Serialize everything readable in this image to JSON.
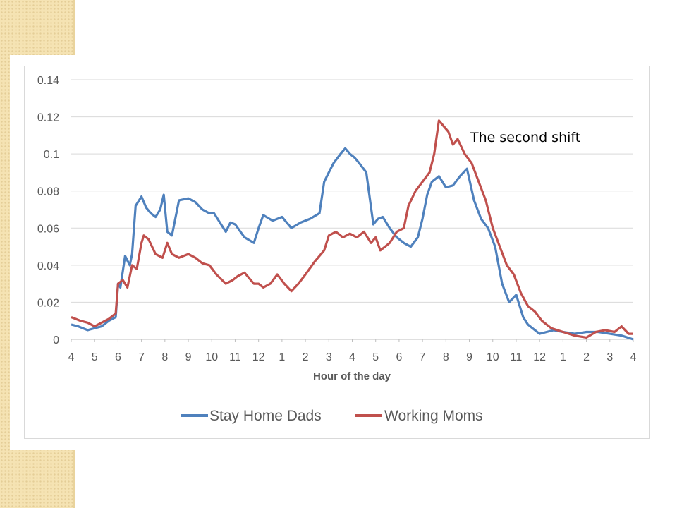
{
  "annotation": "The second shift",
  "colors": {
    "dads": "#4f81bd",
    "moms": "#c0504d",
    "axis_text": "#595959",
    "grid": "#d9d9d9"
  },
  "chart_data": {
    "type": "line",
    "title": "",
    "xlabel": "Hour of the day",
    "ylabel": "",
    "ylim": [
      0,
      0.14
    ],
    "yticks": [
      "0",
      "0.02",
      "0.04",
      "0.06",
      "0.08",
      "0.1",
      "0.12",
      "0.14"
    ],
    "xticks": [
      "4",
      "5",
      "6",
      "7",
      "8",
      "9",
      "10",
      "11",
      "12",
      "1",
      "2",
      "3",
      "4",
      "5",
      "6",
      "7",
      "8",
      "9",
      "10",
      "11",
      "12",
      "1",
      "2",
      "3",
      "4"
    ],
    "grid": "horizontal",
    "legend_position": "bottom",
    "x_unit": "hours after 4 AM",
    "series": [
      {
        "name": "Stay Home Dads",
        "color": "#4f81bd",
        "x": [
          0,
          0.3,
          0.7,
          1.0,
          1.3,
          1.6,
          1.9,
          2.0,
          2.1,
          2.3,
          2.5,
          2.6,
          2.75,
          2.9,
          3.0,
          3.2,
          3.4,
          3.6,
          3.8,
          3.95,
          4.1,
          4.3,
          4.6,
          5.0,
          5.3,
          5.6,
          5.9,
          6.1,
          6.3,
          6.6,
          6.8,
          7.0,
          7.4,
          7.8,
          8.0,
          8.2,
          8.6,
          9.0,
          9.4,
          9.8,
          10.2,
          10.6,
          10.8,
          11.0,
          11.2,
          11.5,
          11.7,
          11.9,
          12.1,
          12.3,
          12.6,
          12.9,
          13.1,
          13.3,
          13.6,
          13.9,
          14.2,
          14.5,
          14.8,
          15.0,
          15.2,
          15.4,
          15.7,
          16.0,
          16.3,
          16.6,
          16.9,
          17.2,
          17.5,
          17.8,
          18.1,
          18.4,
          18.7,
          19.0,
          19.3,
          19.5,
          19.8,
          20.0,
          20.3,
          20.6,
          21.0,
          21.5,
          22.0,
          22.5,
          23.0,
          23.5,
          24.0
        ],
        "values": [
          0.008,
          0.007,
          0.005,
          0.006,
          0.007,
          0.01,
          0.012,
          0.03,
          0.028,
          0.045,
          0.04,
          0.046,
          0.072,
          0.075,
          0.077,
          0.071,
          0.068,
          0.066,
          0.07,
          0.078,
          0.058,
          0.056,
          0.075,
          0.076,
          0.074,
          0.07,
          0.068,
          0.068,
          0.064,
          0.058,
          0.063,
          0.062,
          0.055,
          0.052,
          0.06,
          0.067,
          0.064,
          0.066,
          0.06,
          0.063,
          0.065,
          0.068,
          0.085,
          0.09,
          0.095,
          0.1,
          0.103,
          0.1,
          0.098,
          0.095,
          0.09,
          0.062,
          0.065,
          0.066,
          0.06,
          0.055,
          0.052,
          0.05,
          0.055,
          0.065,
          0.078,
          0.085,
          0.088,
          0.082,
          0.083,
          0.088,
          0.092,
          0.075,
          0.065,
          0.06,
          0.05,
          0.03,
          0.02,
          0.024,
          0.012,
          0.008,
          0.005,
          0.003,
          0.004,
          0.005,
          0.004,
          0.003,
          0.004,
          0.004,
          0.003,
          0.002,
          0.0
        ]
      },
      {
        "name": "Working Moms",
        "color": "#c0504d",
        "x": [
          0,
          0.4,
          0.7,
          1.0,
          1.3,
          1.6,
          1.9,
          2.0,
          2.2,
          2.4,
          2.6,
          2.8,
          3.0,
          3.1,
          3.3,
          3.6,
          3.9,
          4.1,
          4.3,
          4.6,
          5.0,
          5.3,
          5.6,
          5.9,
          6.2,
          6.6,
          6.9,
          7.1,
          7.4,
          7.8,
          8.0,
          8.2,
          8.5,
          8.8,
          9.1,
          9.4,
          9.7,
          10.0,
          10.4,
          10.8,
          11.0,
          11.3,
          11.6,
          11.9,
          12.2,
          12.5,
          12.8,
          13.0,
          13.2,
          13.4,
          13.6,
          13.9,
          14.2,
          14.4,
          14.7,
          15.0,
          15.3,
          15.5,
          15.7,
          15.9,
          16.1,
          16.3,
          16.5,
          16.8,
          17.1,
          17.4,
          17.7,
          18.0,
          18.3,
          18.6,
          18.9,
          19.2,
          19.5,
          19.8,
          20.1,
          20.5,
          21.0,
          21.5,
          22.0,
          22.4,
          22.8,
          23.2,
          23.5,
          23.8,
          24.0
        ],
        "values": [
          0.012,
          0.01,
          0.009,
          0.007,
          0.009,
          0.011,
          0.014,
          0.03,
          0.032,
          0.028,
          0.04,
          0.038,
          0.052,
          0.056,
          0.054,
          0.046,
          0.044,
          0.052,
          0.046,
          0.044,
          0.046,
          0.044,
          0.041,
          0.04,
          0.035,
          0.03,
          0.032,
          0.034,
          0.036,
          0.03,
          0.03,
          0.028,
          0.03,
          0.035,
          0.03,
          0.026,
          0.03,
          0.035,
          0.042,
          0.048,
          0.056,
          0.058,
          0.055,
          0.057,
          0.055,
          0.058,
          0.052,
          0.055,
          0.048,
          0.05,
          0.052,
          0.058,
          0.06,
          0.072,
          0.08,
          0.085,
          0.09,
          0.1,
          0.118,
          0.115,
          0.112,
          0.105,
          0.108,
          0.1,
          0.095,
          0.085,
          0.075,
          0.06,
          0.05,
          0.04,
          0.035,
          0.025,
          0.018,
          0.015,
          0.01,
          0.006,
          0.004,
          0.002,
          0.001,
          0.004,
          0.005,
          0.004,
          0.007,
          0.003,
          0.003
        ]
      }
    ]
  }
}
